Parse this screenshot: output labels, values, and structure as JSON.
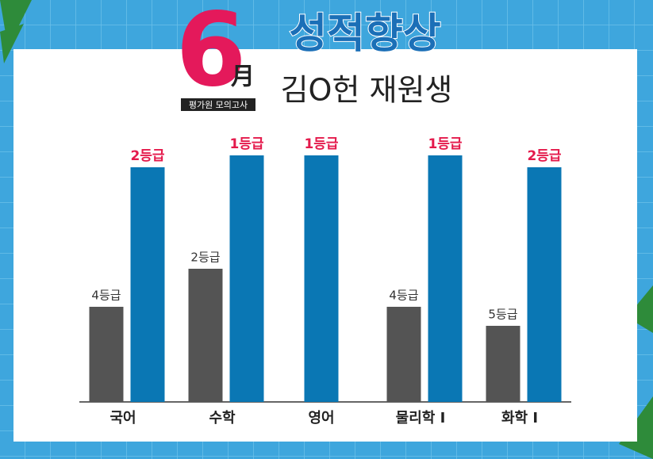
{
  "chart_data": {
    "type": "bar",
    "title": "성적향상",
    "subtitle": "김O헌 재원생",
    "badge": {
      "number": "6",
      "month": "月",
      "label": "평가원 모의고사"
    },
    "categories": [
      "국어",
      "수학",
      "영어",
      "물리학 Ⅰ",
      "화학 Ⅰ"
    ],
    "series": [
      {
        "color": "#545454",
        "values": [
          4,
          2,
          null,
          4,
          5
        ],
        "value_labels": [
          "4등급",
          "2등급",
          null,
          "4등급",
          "5등급"
        ]
      },
      {
        "color": "#0a77b4",
        "values": [
          2,
          1,
          1,
          1,
          2
        ],
        "value_labels": [
          "2등급",
          "1등급",
          "1등급",
          "1등급",
          "2등급"
        ]
      }
    ]
  }
}
